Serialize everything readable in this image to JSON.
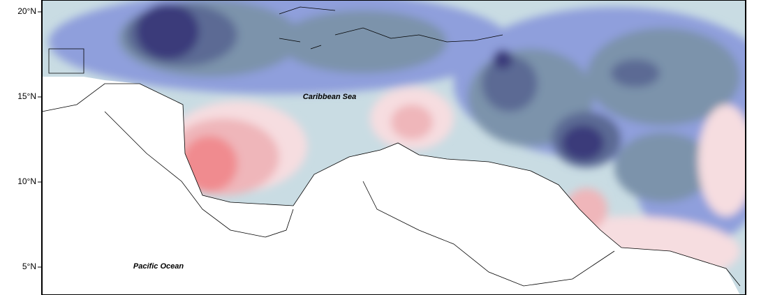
{
  "axis": {
    "ticks": [
      "20°N",
      "15°N",
      "10°N",
      "5°N"
    ]
  },
  "labels": {
    "sea": "Caribbean Sea",
    "ocean": "Pacific Ocean"
  }
}
